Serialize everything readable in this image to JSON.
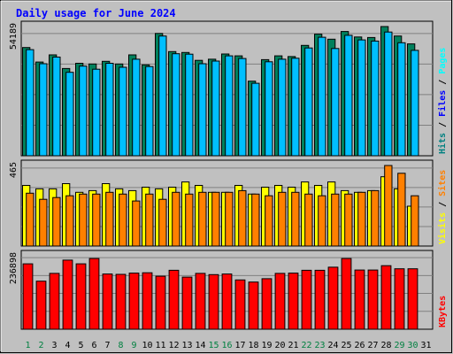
{
  "chart_data": [
    {
      "type": "bar",
      "title": "Daily usage for June 2024",
      "categories": [
        "1",
        "2",
        "3",
        "4",
        "5",
        "6",
        "7",
        "8",
        "9",
        "10",
        "11",
        "12",
        "13",
        "14",
        "15",
        "16",
        "17",
        "18",
        "19",
        "20",
        "21",
        "22",
        "23",
        "24",
        "25",
        "26",
        "27",
        "28",
        "29",
        "30",
        "31"
      ],
      "weekend_days": [
        "1",
        "2",
        "8",
        "9",
        "15",
        "16",
        "22",
        "23",
        "29",
        "30"
      ],
      "ymax_label": "54189",
      "ylim": [
        0,
        54189
      ],
      "legend": [
        {
          "name": "Hits",
          "color": "#008080"
        },
        {
          "name": "Files",
          "color": "#0000ff"
        },
        {
          "name": "Pages",
          "color": "#00ffff"
        }
      ],
      "series": [
        {
          "name": "Hits",
          "color": "#00805c",
          "values": [
            45400,
            39300,
            42300,
            36600,
            38800,
            38500,
            39600,
            38500,
            42300,
            38100,
            51300,
            43700,
            43300,
            40000,
            40500,
            42700,
            41900,
            31300,
            40300,
            41900,
            41600,
            46300,
            51000,
            48900,
            52100,
            49800,
            49600,
            54189,
            50200,
            46900,
            0
          ]
        },
        {
          "name": "Files",
          "color": "#00bfff",
          "values": [
            44500,
            38600,
            41400,
            35000,
            37600,
            36300,
            38800,
            37100,
            40500,
            37400,
            50200,
            42800,
            42600,
            38600,
            39700,
            41900,
            40800,
            30400,
            39400,
            40500,
            40900,
            45200,
            49700,
            45000,
            50500,
            48600,
            48100,
            51900,
            47400,
            44200,
            0
          ]
        }
      ]
    },
    {
      "type": "bar",
      "ymax_label": "465",
      "ylim": [
        0,
        465
      ],
      "legend": [
        {
          "name": "Visits",
          "color": "#ffff00"
        },
        {
          "name": "Sites",
          "color": "#ff8000"
        }
      ],
      "series": [
        {
          "name": "Visits",
          "color": "#ffff00",
          "values": [
            350,
            330,
            330,
            360,
            310,
            320,
            360,
            330,
            320,
            340,
            330,
            340,
            370,
            350,
            310,
            310,
            350,
            300,
            340,
            350,
            340,
            370,
            350,
            370,
            320,
            310,
            320,
            400,
            330,
            230,
            0
          ]
        },
        {
          "name": "Sites",
          "color": "#ff8000",
          "values": [
            305,
            270,
            280,
            290,
            300,
            300,
            310,
            300,
            260,
            300,
            270,
            310,
            300,
            310,
            310,
            310,
            320,
            300,
            290,
            310,
            310,
            300,
            290,
            300,
            300,
            310,
            320,
            465,
            420,
            290,
            0
          ]
        }
      ]
    },
    {
      "type": "bar",
      "ymax_label": "236898",
      "ylim": [
        0,
        236898
      ],
      "legend": [
        {
          "name": "KBytes",
          "color": "#ff0000"
        }
      ],
      "series": [
        {
          "name": "KBytes",
          "color": "#ff0000",
          "values": [
            211000,
            155000,
            180000,
            223000,
            211000,
            228000,
            178000,
            177000,
            181000,
            182000,
            171000,
            190000,
            168000,
            180000,
            176000,
            178000,
            159000,
            152000,
            163000,
            180000,
            181000,
            190000,
            190000,
            200000,
            228000,
            191000,
            191000,
            205000,
            195000,
            195000,
            0
          ]
        }
      ]
    }
  ]
}
